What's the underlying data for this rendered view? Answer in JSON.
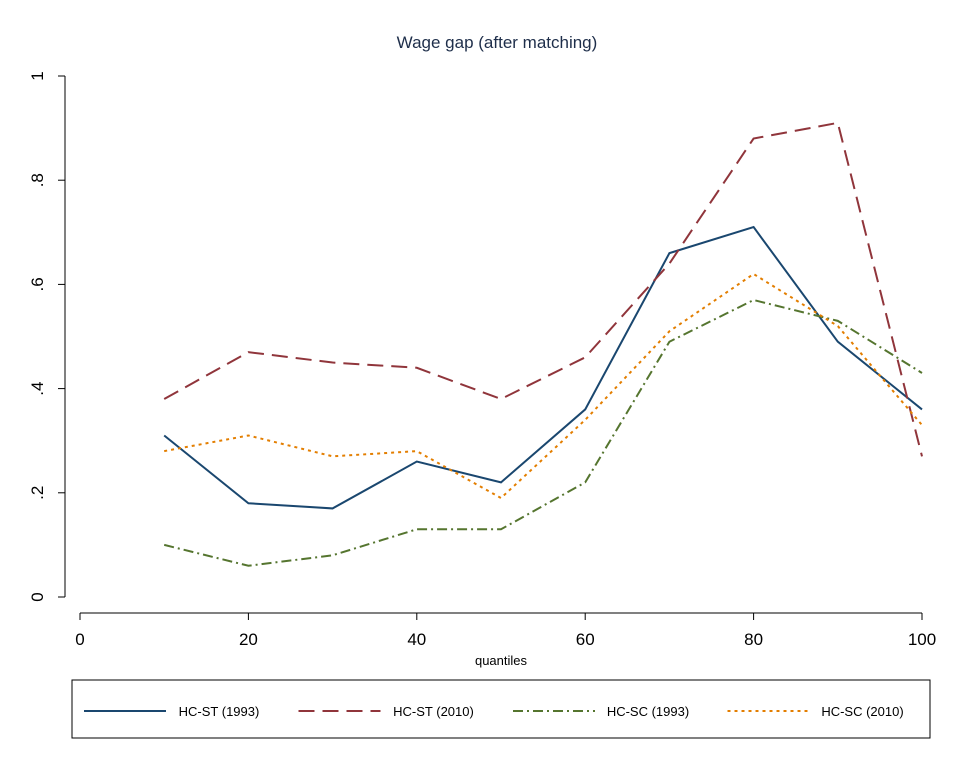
{
  "chart_data": {
    "type": "line",
    "title": "Wage gap (after matching)",
    "x_label": "quantiles",
    "x": [
      10,
      20,
      30,
      40,
      50,
      60,
      70,
      80,
      90,
      100
    ],
    "series": [
      {
        "name": "HC-ST (1993)",
        "color": "#1a476f",
        "line_style": "solid",
        "values": [
          0.31,
          0.18,
          0.17,
          0.26,
          0.22,
          0.36,
          0.66,
          0.71,
          0.49,
          0.36
        ]
      },
      {
        "name": "HC-ST (2010)",
        "color": "#90353b",
        "line_style": "dash",
        "values": [
          0.38,
          0.47,
          0.45,
          0.44,
          0.38,
          0.46,
          0.64,
          0.88,
          0.91,
          0.27
        ]
      },
      {
        "name": "HC-SC (1993)",
        "color": "#55752f",
        "line_style": "dashdot",
        "values": [
          0.1,
          0.06,
          0.08,
          0.13,
          0.13,
          0.22,
          0.49,
          0.57,
          0.53,
          0.43
        ]
      },
      {
        "name": "HC-SC (2010)",
        "color": "#e37e00",
        "line_style": "dot",
        "values": [
          0.28,
          0.31,
          0.27,
          0.28,
          0.19,
          0.34,
          0.51,
          0.62,
          0.52,
          0.33
        ]
      }
    ],
    "xlim": [
      0,
      100
    ],
    "xticks": [
      0,
      20,
      40,
      60,
      80,
      100
    ],
    "ylim": [
      0,
      1
    ],
    "yticks": [
      0,
      {
        "value": 0.2,
        "label": ".2"
      },
      {
        "value": 0.4,
        "label": ".4"
      },
      {
        "value": 0.6,
        "label": ".6"
      },
      {
        "value": 0.8,
        "label": ".8"
      },
      1
    ],
    "grid": false,
    "legend": "bottom"
  }
}
